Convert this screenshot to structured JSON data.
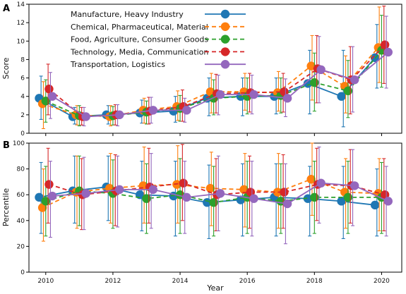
{
  "chart_data": [
    {
      "panel_label": "A",
      "type": "line",
      "ylabel": "Score",
      "x": [
        2010,
        2011,
        2012,
        2013,
        2014,
        2015,
        2016,
        2017,
        2018,
        2019,
        2020
      ],
      "xlim": [
        2009.5,
        2020.6
      ],
      "ylim": [
        0,
        14
      ],
      "yticks": [
        0,
        2,
        4,
        6,
        8,
        10,
        12,
        14
      ],
      "legend": "top-left",
      "series": [
        {
          "name": "Manufacture, Heavy Industry",
          "color": "#1f77b4",
          "dash": "solid",
          "values": [
            3.8,
            1.8,
            2.0,
            2.2,
            2.4,
            3.8,
            4.0,
            4.0,
            5.4,
            4.0,
            8.2
          ],
          "err_low": [
            1.5,
            1.0,
            1.0,
            1.1,
            1.2,
            1.9,
            1.9,
            2.1,
            2.1,
            0.7,
            4.9
          ],
          "err_high": [
            6.2,
            2.8,
            3.0,
            3.6,
            4.0,
            6.0,
            6.0,
            6.0,
            9.0,
            9.0,
            11.8
          ]
        },
        {
          "name": "Chemical, Pharmaceutical, Material",
          "color": "#ff7f0e",
          "dash": "dashed",
          "values": [
            3.2,
            2.0,
            1.8,
            2.5,
            2.9,
            4.5,
            4.5,
            4.4,
            7.3,
            5.1,
            9.3
          ],
          "err_low": [
            0.5,
            0.9,
            0.8,
            1.1,
            1.4,
            2.2,
            2.5,
            2.4,
            3.6,
            2.2,
            5.5
          ],
          "err_high": [
            5.6,
            3.0,
            3.0,
            3.8,
            4.6,
            6.5,
            6.5,
            6.7,
            10.6,
            8.4,
            13.7
          ]
        },
        {
          "name": "Food, Agriculture, Consumer Goods",
          "color": "#2ca02c",
          "dash": "dashed",
          "values": [
            3.5,
            1.9,
            1.9,
            2.3,
            2.7,
            3.8,
            4.0,
            4.1,
            5.5,
            4.6,
            9.0
          ],
          "err_low": [
            1.2,
            0.8,
            0.9,
            1.0,
            1.3,
            2.0,
            2.1,
            2.2,
            2.4,
            1.7,
            5.0
          ],
          "err_high": [
            5.8,
            3.0,
            2.9,
            3.5,
            4.1,
            5.8,
            6.0,
            6.0,
            8.7,
            7.9,
            12.8
          ]
        },
        {
          "name": "Technology, Media, Communication",
          "color": "#d62728",
          "dash": "dashed",
          "values": [
            4.8,
            1.8,
            2.0,
            2.4,
            2.9,
            4.3,
            4.4,
            4.5,
            7.0,
            5.8,
            9.6
          ],
          "err_low": [
            2.0,
            0.9,
            0.9,
            1.0,
            1.3,
            2.2,
            2.3,
            2.3,
            3.3,
            2.1,
            5.4
          ],
          "err_high": [
            7.5,
            2.8,
            3.1,
            3.9,
            4.7,
            6.4,
            6.5,
            6.5,
            10.6,
            9.4,
            13.8
          ]
        },
        {
          "name": "Transportation, Logistics",
          "color": "#9467bd",
          "dash": "solid",
          "values": [
            4.0,
            1.8,
            2.0,
            2.5,
            2.5,
            4.2,
            4.2,
            3.8,
            6.9,
            5.8,
            8.8
          ],
          "err_low": [
            1.6,
            0.8,
            0.8,
            1.1,
            1.2,
            2.0,
            2.1,
            1.8,
            3.3,
            2.3,
            4.9
          ],
          "err_high": [
            6.6,
            2.8,
            3.1,
            3.9,
            3.8,
            6.3,
            6.3,
            5.9,
            10.5,
            9.4,
            12.7
          ]
        }
      ]
    },
    {
      "panel_label": "B",
      "type": "line",
      "xlabel": "Year",
      "ylabel": "Percentile",
      "x": [
        2010,
        2011,
        2012,
        2013,
        2014,
        2015,
        2016,
        2017,
        2018,
        2019,
        2020
      ],
      "xticks": [
        2010,
        2012,
        2014,
        2016,
        2018,
        2020
      ],
      "xlim": [
        2009.5,
        2020.6
      ],
      "ylim": [
        0,
        100
      ],
      "yticks": [
        0,
        20,
        40,
        60,
        80,
        100
      ],
      "series": [
        {
          "name": "Manufacture, Heavy Industry",
          "color": "#1f77b4",
          "dash": "solid",
          "values": [
            58,
            63,
            66,
            60,
            59,
            54,
            56,
            58,
            57,
            55,
            52
          ],
          "err_low": [
            30,
            38,
            40,
            32,
            28,
            26,
            28,
            28,
            28,
            26,
            28
          ],
          "err_high": [
            85,
            90,
            90,
            86,
            86,
            83,
            84,
            84,
            82,
            82,
            80
          ]
        },
        {
          "name": "Chemical, Pharmaceutical, Material",
          "color": "#ff7f0e",
          "dash": "dashed",
          "values": [
            50,
            62,
            65,
            67,
            68,
            65,
            64,
            62,
            72,
            62,
            61
          ],
          "err_low": [
            24,
            34,
            38,
            38,
            38,
            36,
            35,
            34,
            44,
            34,
            32
          ],
          "err_high": [
            80,
            90,
            92,
            97,
            98,
            93,
            92,
            92,
            100,
            88,
            88
          ]
        },
        {
          "name": "Food, Agriculture, Consumer Goods",
          "color": "#2ca02c",
          "dash": "dashed",
          "values": [
            55,
            63,
            61,
            57,
            60,
            54,
            58,
            55,
            58,
            58,
            58
          ],
          "err_low": [
            28,
            36,
            34,
            30,
            30,
            28,
            30,
            30,
            30,
            30,
            30
          ],
          "err_high": [
            82,
            90,
            87,
            84,
            88,
            82,
            86,
            84,
            86,
            86,
            85
          ]
        },
        {
          "name": "Technology, Media, Communication",
          "color": "#d62728",
          "dash": "dashed",
          "values": [
            68,
            60,
            63,
            66,
            69,
            60,
            62,
            62,
            68,
            67,
            60
          ],
          "err_low": [
            38,
            33,
            36,
            38,
            40,
            32,
            34,
            34,
            40,
            38,
            32
          ],
          "err_high": [
            96,
            88,
            91,
            96,
            99,
            88,
            90,
            91,
            96,
            95,
            88
          ]
        },
        {
          "name": "Transportation, Logistics",
          "color": "#9467bd",
          "dash": "solid",
          "values": [
            59,
            61,
            64,
            64,
            58,
            61,
            57,
            53,
            69,
            67,
            55
          ],
          "err_low": [
            27,
            33,
            35,
            34,
            30,
            32,
            28,
            22,
            38,
            36,
            28
          ],
          "err_high": [
            86,
            89,
            90,
            92,
            86,
            90,
            86,
            84,
            97,
            95,
            82
          ]
        }
      ]
    }
  ]
}
